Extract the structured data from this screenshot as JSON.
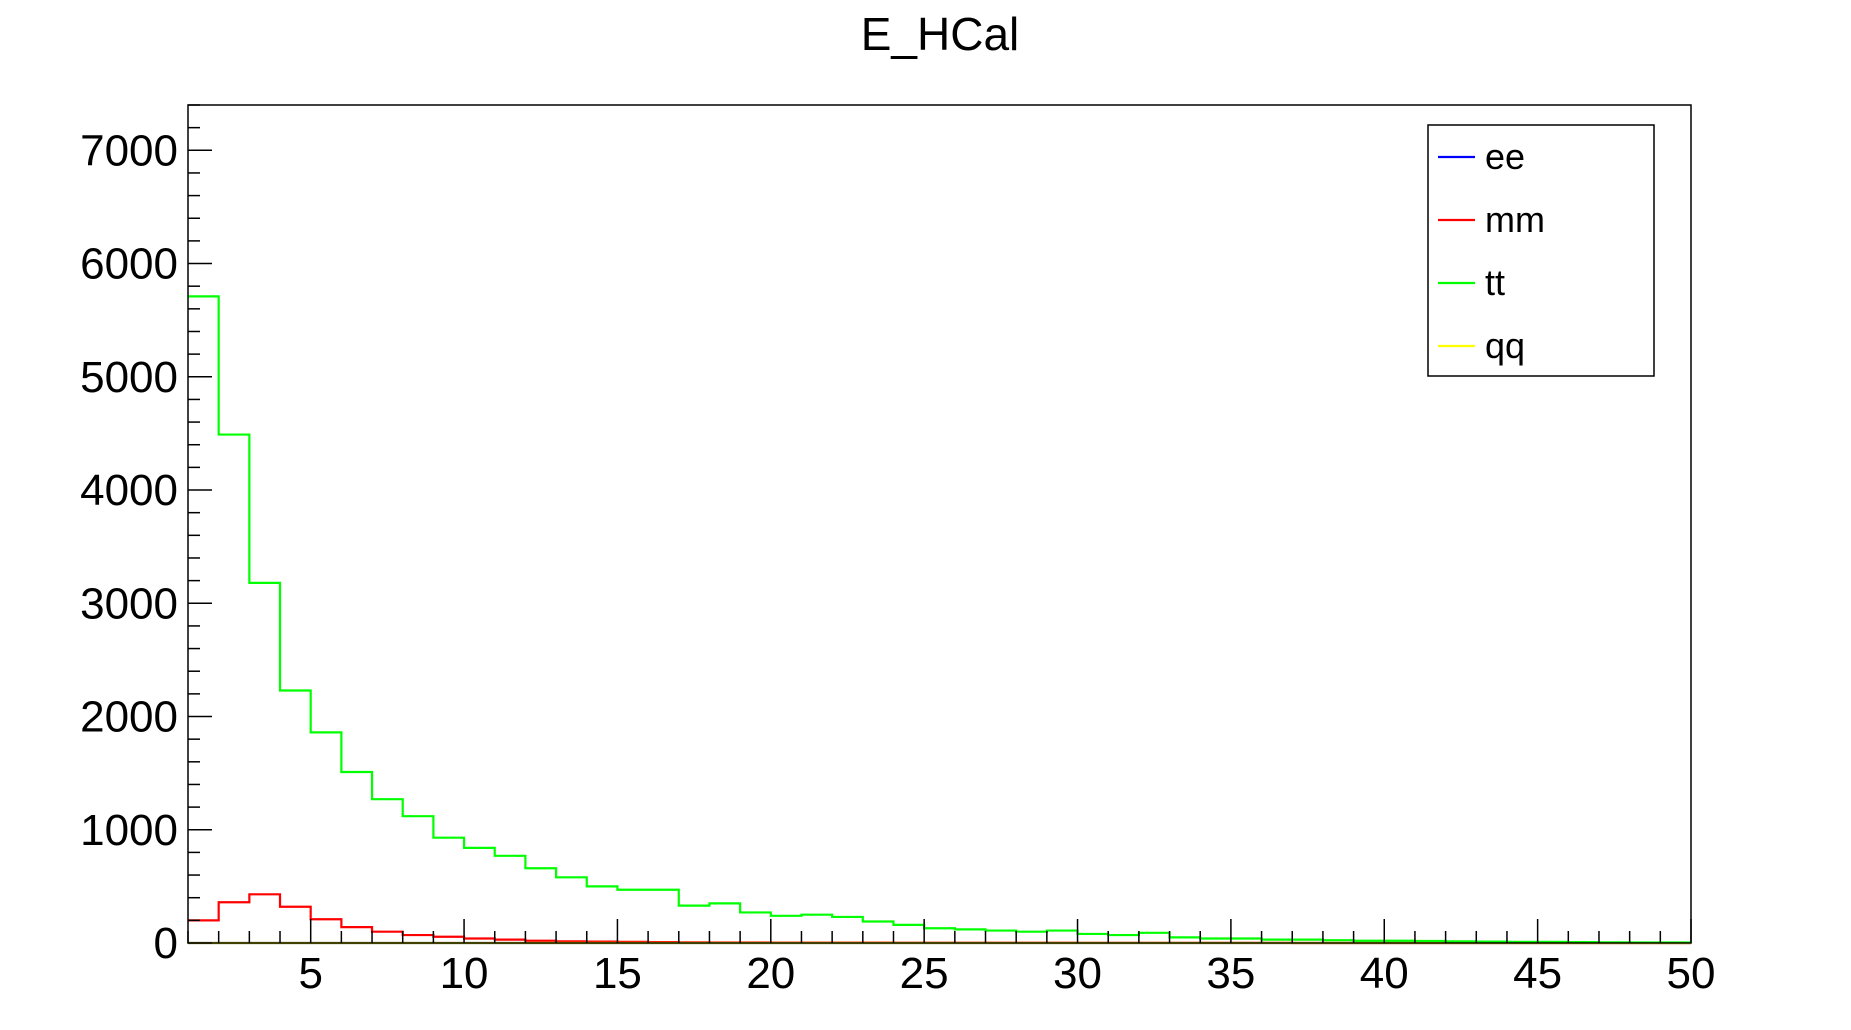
{
  "chart_data": {
    "type": "line",
    "style": "step-histogram",
    "title": "E_HCal",
    "xlabel": "",
    "ylabel": "",
    "xlim": [
      1,
      50
    ],
    "ylim": [
      0,
      7400
    ],
    "x_ticks": [
      5,
      10,
      15,
      20,
      25,
      30,
      35,
      40,
      45,
      50
    ],
    "y_ticks": [
      0,
      1000,
      2000,
      3000,
      4000,
      5000,
      6000,
      7000
    ],
    "grid": false,
    "legend_position": "top-right",
    "bin_edges": [
      1,
      2,
      3,
      4,
      5,
      6,
      7,
      8,
      9,
      10,
      11,
      12,
      13,
      14,
      15,
      16,
      17,
      18,
      19,
      20,
      21,
      22,
      23,
      24,
      25,
      26,
      27,
      28,
      29,
      30,
      31,
      32,
      33,
      34,
      35,
      36,
      37,
      38,
      39,
      40,
      41,
      42,
      43,
      44,
      45,
      46,
      47,
      48,
      49,
      50
    ],
    "series": [
      {
        "name": "ee",
        "color": "#0000ff",
        "values": [
          0,
          0,
          0,
          0,
          0,
          0,
          0,
          0,
          0,
          0,
          0,
          0,
          0,
          0,
          0,
          0,
          0,
          0,
          0,
          0,
          0,
          0,
          0,
          0,
          0,
          0,
          0,
          0,
          0,
          0,
          0,
          0,
          0,
          0,
          0,
          0,
          0,
          0,
          0,
          0,
          0,
          0,
          0,
          0,
          0,
          0,
          0,
          0,
          0
        ]
      },
      {
        "name": "mm",
        "color": "#ff0000",
        "values": [
          200,
          360,
          430,
          320,
          210,
          140,
          100,
          70,
          55,
          40,
          30,
          20,
          15,
          12,
          10,
          8,
          6,
          5,
          5,
          4,
          4,
          3,
          3,
          2,
          2,
          2,
          2,
          2,
          2,
          1,
          1,
          1,
          1,
          1,
          1,
          1,
          0,
          0,
          0,
          0,
          0,
          0,
          0,
          0,
          0,
          0,
          0,
          0,
          0
        ]
      },
      {
        "name": "tt",
        "color": "#00ff00",
        "values": [
          5710,
          4490,
          3180,
          2230,
          1860,
          1510,
          1270,
          1120,
          930,
          840,
          770,
          660,
          580,
          500,
          470,
          470,
          330,
          350,
          270,
          240,
          250,
          230,
          190,
          160,
          130,
          120,
          110,
          100,
          110,
          80,
          70,
          90,
          50,
          40,
          40,
          30,
          30,
          25,
          20,
          20,
          18,
          15,
          12,
          10,
          10,
          8,
          6,
          5,
          5
        ]
      },
      {
        "name": "qq",
        "color": "#ffff00",
        "values": [
          0,
          0,
          0,
          0,
          0,
          0,
          0,
          0,
          0,
          0,
          0,
          0,
          0,
          0,
          0,
          0,
          0,
          0,
          0,
          0,
          0,
          0,
          0,
          0,
          0,
          0,
          0,
          0,
          0,
          0,
          0,
          0,
          0,
          0,
          0,
          0,
          0,
          0,
          0,
          0,
          0,
          0,
          0,
          0,
          0,
          0,
          0,
          0,
          0
        ]
      }
    ]
  }
}
